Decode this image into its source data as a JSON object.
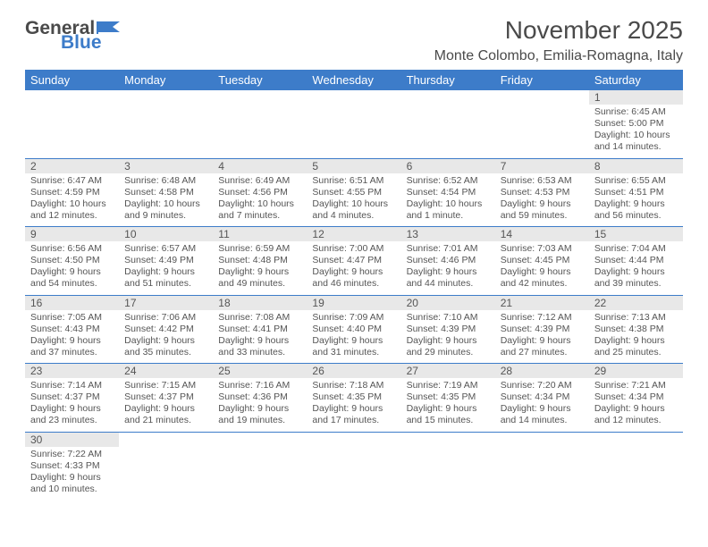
{
  "logo": {
    "text1": "General",
    "text2": "Blue"
  },
  "title": "November 2025",
  "location": "Monte Colombo, Emilia-Romagna, Italy",
  "colors": {
    "header_bg": "#3d7cc9",
    "header_fg": "#ffffff",
    "daynum_bg": "#e8e8e8",
    "rule": "#3d7cc9",
    "text": "#4a4a4a"
  },
  "day_headers": [
    "Sunday",
    "Monday",
    "Tuesday",
    "Wednesday",
    "Thursday",
    "Friday",
    "Saturday"
  ],
  "weeks": [
    [
      null,
      null,
      null,
      null,
      null,
      null,
      {
        "n": "1",
        "sunrise": "Sunrise: 6:45 AM",
        "sunset": "Sunset: 5:00 PM",
        "daylight1": "Daylight: 10 hours",
        "daylight2": "and 14 minutes."
      }
    ],
    [
      {
        "n": "2",
        "sunrise": "Sunrise: 6:47 AM",
        "sunset": "Sunset: 4:59 PM",
        "daylight1": "Daylight: 10 hours",
        "daylight2": "and 12 minutes."
      },
      {
        "n": "3",
        "sunrise": "Sunrise: 6:48 AM",
        "sunset": "Sunset: 4:58 PM",
        "daylight1": "Daylight: 10 hours",
        "daylight2": "and 9 minutes."
      },
      {
        "n": "4",
        "sunrise": "Sunrise: 6:49 AM",
        "sunset": "Sunset: 4:56 PM",
        "daylight1": "Daylight: 10 hours",
        "daylight2": "and 7 minutes."
      },
      {
        "n": "5",
        "sunrise": "Sunrise: 6:51 AM",
        "sunset": "Sunset: 4:55 PM",
        "daylight1": "Daylight: 10 hours",
        "daylight2": "and 4 minutes."
      },
      {
        "n": "6",
        "sunrise": "Sunrise: 6:52 AM",
        "sunset": "Sunset: 4:54 PM",
        "daylight1": "Daylight: 10 hours",
        "daylight2": "and 1 minute."
      },
      {
        "n": "7",
        "sunrise": "Sunrise: 6:53 AM",
        "sunset": "Sunset: 4:53 PM",
        "daylight1": "Daylight: 9 hours",
        "daylight2": "and 59 minutes."
      },
      {
        "n": "8",
        "sunrise": "Sunrise: 6:55 AM",
        "sunset": "Sunset: 4:51 PM",
        "daylight1": "Daylight: 9 hours",
        "daylight2": "and 56 minutes."
      }
    ],
    [
      {
        "n": "9",
        "sunrise": "Sunrise: 6:56 AM",
        "sunset": "Sunset: 4:50 PM",
        "daylight1": "Daylight: 9 hours",
        "daylight2": "and 54 minutes."
      },
      {
        "n": "10",
        "sunrise": "Sunrise: 6:57 AM",
        "sunset": "Sunset: 4:49 PM",
        "daylight1": "Daylight: 9 hours",
        "daylight2": "and 51 minutes."
      },
      {
        "n": "11",
        "sunrise": "Sunrise: 6:59 AM",
        "sunset": "Sunset: 4:48 PM",
        "daylight1": "Daylight: 9 hours",
        "daylight2": "and 49 minutes."
      },
      {
        "n": "12",
        "sunrise": "Sunrise: 7:00 AM",
        "sunset": "Sunset: 4:47 PM",
        "daylight1": "Daylight: 9 hours",
        "daylight2": "and 46 minutes."
      },
      {
        "n": "13",
        "sunrise": "Sunrise: 7:01 AM",
        "sunset": "Sunset: 4:46 PM",
        "daylight1": "Daylight: 9 hours",
        "daylight2": "and 44 minutes."
      },
      {
        "n": "14",
        "sunrise": "Sunrise: 7:03 AM",
        "sunset": "Sunset: 4:45 PM",
        "daylight1": "Daylight: 9 hours",
        "daylight2": "and 42 minutes."
      },
      {
        "n": "15",
        "sunrise": "Sunrise: 7:04 AM",
        "sunset": "Sunset: 4:44 PM",
        "daylight1": "Daylight: 9 hours",
        "daylight2": "and 39 minutes."
      }
    ],
    [
      {
        "n": "16",
        "sunrise": "Sunrise: 7:05 AM",
        "sunset": "Sunset: 4:43 PM",
        "daylight1": "Daylight: 9 hours",
        "daylight2": "and 37 minutes."
      },
      {
        "n": "17",
        "sunrise": "Sunrise: 7:06 AM",
        "sunset": "Sunset: 4:42 PM",
        "daylight1": "Daylight: 9 hours",
        "daylight2": "and 35 minutes."
      },
      {
        "n": "18",
        "sunrise": "Sunrise: 7:08 AM",
        "sunset": "Sunset: 4:41 PM",
        "daylight1": "Daylight: 9 hours",
        "daylight2": "and 33 minutes."
      },
      {
        "n": "19",
        "sunrise": "Sunrise: 7:09 AM",
        "sunset": "Sunset: 4:40 PM",
        "daylight1": "Daylight: 9 hours",
        "daylight2": "and 31 minutes."
      },
      {
        "n": "20",
        "sunrise": "Sunrise: 7:10 AM",
        "sunset": "Sunset: 4:39 PM",
        "daylight1": "Daylight: 9 hours",
        "daylight2": "and 29 minutes."
      },
      {
        "n": "21",
        "sunrise": "Sunrise: 7:12 AM",
        "sunset": "Sunset: 4:39 PM",
        "daylight1": "Daylight: 9 hours",
        "daylight2": "and 27 minutes."
      },
      {
        "n": "22",
        "sunrise": "Sunrise: 7:13 AM",
        "sunset": "Sunset: 4:38 PM",
        "daylight1": "Daylight: 9 hours",
        "daylight2": "and 25 minutes."
      }
    ],
    [
      {
        "n": "23",
        "sunrise": "Sunrise: 7:14 AM",
        "sunset": "Sunset: 4:37 PM",
        "daylight1": "Daylight: 9 hours",
        "daylight2": "and 23 minutes."
      },
      {
        "n": "24",
        "sunrise": "Sunrise: 7:15 AM",
        "sunset": "Sunset: 4:37 PM",
        "daylight1": "Daylight: 9 hours",
        "daylight2": "and 21 minutes."
      },
      {
        "n": "25",
        "sunrise": "Sunrise: 7:16 AM",
        "sunset": "Sunset: 4:36 PM",
        "daylight1": "Daylight: 9 hours",
        "daylight2": "and 19 minutes."
      },
      {
        "n": "26",
        "sunrise": "Sunrise: 7:18 AM",
        "sunset": "Sunset: 4:35 PM",
        "daylight1": "Daylight: 9 hours",
        "daylight2": "and 17 minutes."
      },
      {
        "n": "27",
        "sunrise": "Sunrise: 7:19 AM",
        "sunset": "Sunset: 4:35 PM",
        "daylight1": "Daylight: 9 hours",
        "daylight2": "and 15 minutes."
      },
      {
        "n": "28",
        "sunrise": "Sunrise: 7:20 AM",
        "sunset": "Sunset: 4:34 PM",
        "daylight1": "Daylight: 9 hours",
        "daylight2": "and 14 minutes."
      },
      {
        "n": "29",
        "sunrise": "Sunrise: 7:21 AM",
        "sunset": "Sunset: 4:34 PM",
        "daylight1": "Daylight: 9 hours",
        "daylight2": "and 12 minutes."
      }
    ],
    [
      {
        "n": "30",
        "sunrise": "Sunrise: 7:22 AM",
        "sunset": "Sunset: 4:33 PM",
        "daylight1": "Daylight: 9 hours",
        "daylight2": "and 10 minutes."
      },
      null,
      null,
      null,
      null,
      null,
      null
    ]
  ]
}
